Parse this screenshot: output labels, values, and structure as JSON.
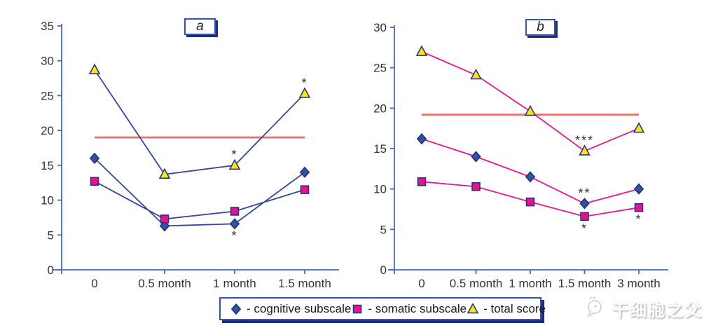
{
  "colors": {
    "axis": "#4a69b8",
    "tick_text": "#333333",
    "reference_line": "#ee6967",
    "marker_stroke": "#1f2f7d",
    "box_border": "#3a50b5",
    "box_shadow": "#1b2d7e"
  },
  "legend": {
    "items": [
      {
        "marker": "diamond",
        "color": "#3350a5",
        "label": "- cognitive subscale"
      },
      {
        "marker": "square",
        "color": "#e8138c",
        "label": "- somatic subscale"
      },
      {
        "marker": "triangle",
        "color": "#ffe506",
        "label": "- total score"
      }
    ]
  },
  "watermark": {
    "text": "干细胞之父"
  },
  "chart_data": [
    {
      "type": "line",
      "panel_label": "a",
      "categories": [
        "0",
        "0.5 month",
        "1 month",
        "1.5 month"
      ],
      "y_ticks": [
        0,
        5,
        10,
        15,
        20,
        25,
        30,
        35
      ],
      "ylim": [
        0,
        35
      ],
      "grid": false,
      "legend_position": "bottom",
      "reference_line": 19,
      "line_color": "#3347a0",
      "series": [
        {
          "name": "cognitive subscale",
          "marker": "diamond",
          "marker_color": "#3350a5",
          "values": [
            16,
            6.3,
            6.6,
            14
          ],
          "annotations": [
            null,
            null,
            {
              "text": "*",
              "position": "below"
            },
            null
          ]
        },
        {
          "name": "somatic subscale",
          "marker": "square",
          "marker_color": "#e8138c",
          "values": [
            12.7,
            7.3,
            8.4,
            11.5
          ],
          "annotations": [
            null,
            null,
            null,
            null
          ]
        },
        {
          "name": "total score",
          "marker": "triangle",
          "marker_color": "#ffe506",
          "values": [
            28.7,
            13.7,
            15,
            25.3
          ],
          "annotations": [
            null,
            null,
            {
              "text": "*",
              "position": "above"
            },
            {
              "text": "*",
              "position": "above"
            }
          ]
        }
      ]
    },
    {
      "type": "line",
      "panel_label": "b",
      "categories": [
        "0",
        "0.5 month",
        "1 month",
        "1.5 month",
        "3 month"
      ],
      "y_ticks": [
        0,
        5,
        10,
        15,
        20,
        25,
        30
      ],
      "ylim": [
        0,
        30
      ],
      "grid": false,
      "legend_position": "bottom",
      "reference_line": 19.2,
      "line_color": "#ee1590",
      "series": [
        {
          "name": "cognitive subscale",
          "marker": "diamond",
          "marker_color": "#3350a5",
          "values": [
            16.2,
            14,
            11.5,
            8.2,
            10
          ],
          "annotations": [
            null,
            null,
            null,
            {
              "text": "**",
              "position": "above"
            },
            null
          ]
        },
        {
          "name": "somatic subscale",
          "marker": "square",
          "marker_color": "#e8138c",
          "values": [
            10.9,
            10.3,
            8.4,
            6.6,
            7.7
          ],
          "annotations": [
            null,
            null,
            null,
            {
              "text": "*",
              "position": "below"
            },
            {
              "text": "*",
              "position": "below"
            }
          ]
        },
        {
          "name": "total score",
          "marker": "triangle",
          "marker_color": "#ffe506",
          "values": [
            27,
            24.1,
            19.6,
            14.7,
            17.5
          ],
          "annotations": [
            null,
            null,
            null,
            {
              "text": "***",
              "position": "above"
            },
            null
          ]
        }
      ]
    }
  ]
}
